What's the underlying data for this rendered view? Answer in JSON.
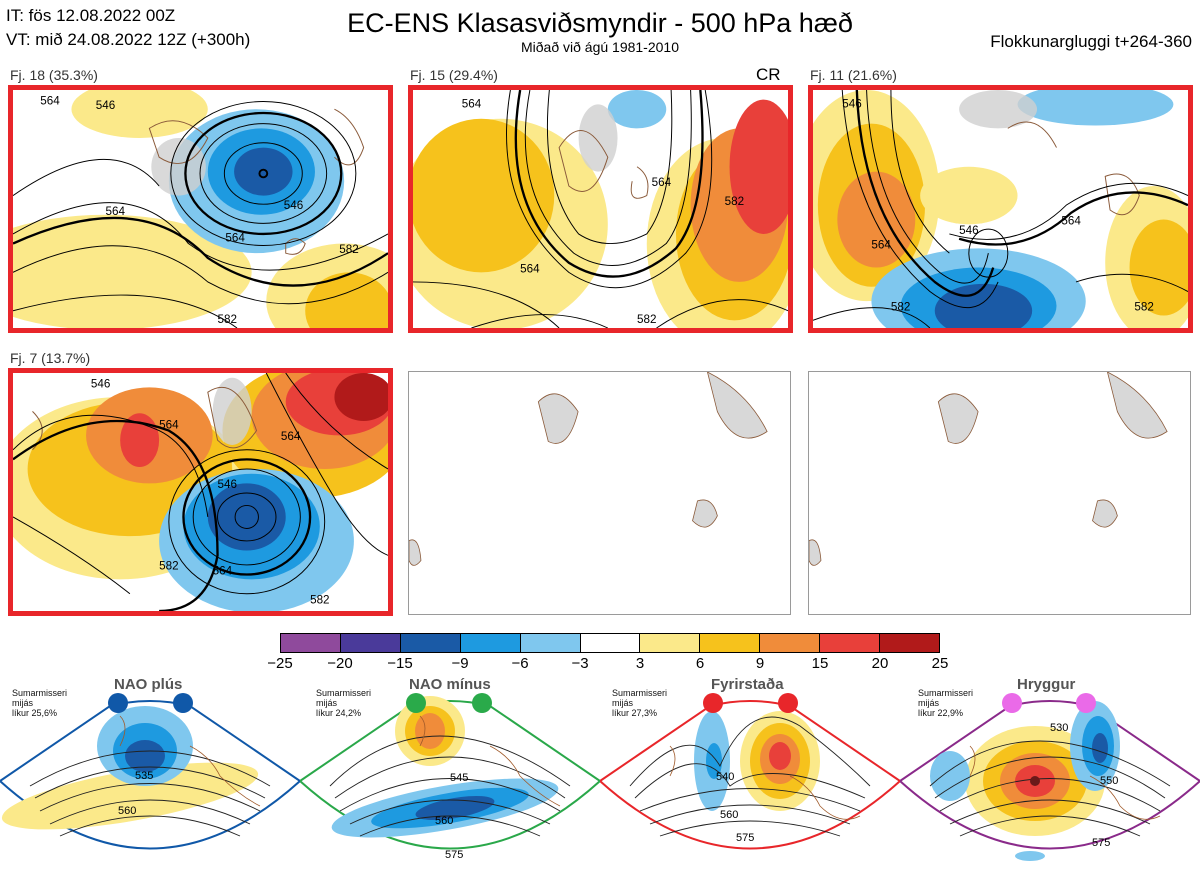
{
  "header": {
    "issue_time": "IT: fös 12.08.2022 00Z",
    "valid_time": "VT: mið 24.08.2022 12Z  (+300h)",
    "title": "EC-ENS Klasasviðsmyndir - 500 hPa hæð",
    "subtitle": "Miðað við ágú 1981-2010",
    "window": "Flokkunargluggi t+264-360"
  },
  "panels": [
    {
      "label": "Fj. 18 (35.3%)",
      "contours": [
        "564",
        "546",
        "564",
        "582",
        "564",
        "546",
        "582"
      ],
      "extra": ""
    },
    {
      "label": "Fj. 15 (29.4%)",
      "contours": [
        "564",
        "564",
        "564",
        "582",
        "582"
      ],
      "extra": "CR"
    },
    {
      "label": "Fj. 11 (21.6%)",
      "contours": [
        "546",
        "564",
        "546",
        "564",
        "582",
        "582"
      ],
      "extra": ""
    },
    {
      "label": "Fj. 7 (13.7%)",
      "contours": [
        "546",
        "564",
        "564",
        "546",
        "582",
        "564",
        "582"
      ],
      "extra": ""
    }
  ],
  "colorbar": {
    "ticks": [
      "−25",
      "−20",
      "−15",
      "−9",
      "−6",
      "−3",
      "3",
      "6",
      "9",
      "15",
      "20",
      "25"
    ],
    "colors": [
      "#8f4a9c",
      "#4a3a9a",
      "#1a5aa6",
      "#1e9ae0",
      "#7fc7ee",
      "#ffffff",
      "#fbe98a",
      "#f6c21c",
      "#f08c3a",
      "#e8403a",
      "#b11a1a"
    ]
  },
  "regimes": [
    {
      "name": "NAO plús",
      "season": "Sumarmisseri",
      "period": "mijás",
      "prob": "líkur 25,6%",
      "color": "#1a5aa6",
      "dot_color": "#1058a8",
      "contours": [
        "535",
        "560"
      ]
    },
    {
      "name": "NAO mínus",
      "season": "Sumarmisseri",
      "period": "mijás",
      "prob": "líkur 24,2%",
      "color": "#2aa84a",
      "dot_color": "#2aaa4a",
      "contours": [
        "545",
        "560",
        "575"
      ]
    },
    {
      "name": "Fyrirstaða",
      "season": "Sumarmisseri",
      "period": "mijás",
      "prob": "líkur 27,3%",
      "color": "#e8262a",
      "dot_color": "#e8262a",
      "contours": [
        "540",
        "560",
        "575"
      ]
    },
    {
      "name": "Hryggur",
      "season": "Sumarmisseri",
      "period": "mijás",
      "prob": "líkur 22,9%",
      "color": "#8a2a8a",
      "dot_color": "#ea6ae8",
      "contours": [
        "530",
        "550",
        "575"
      ]
    }
  ]
}
